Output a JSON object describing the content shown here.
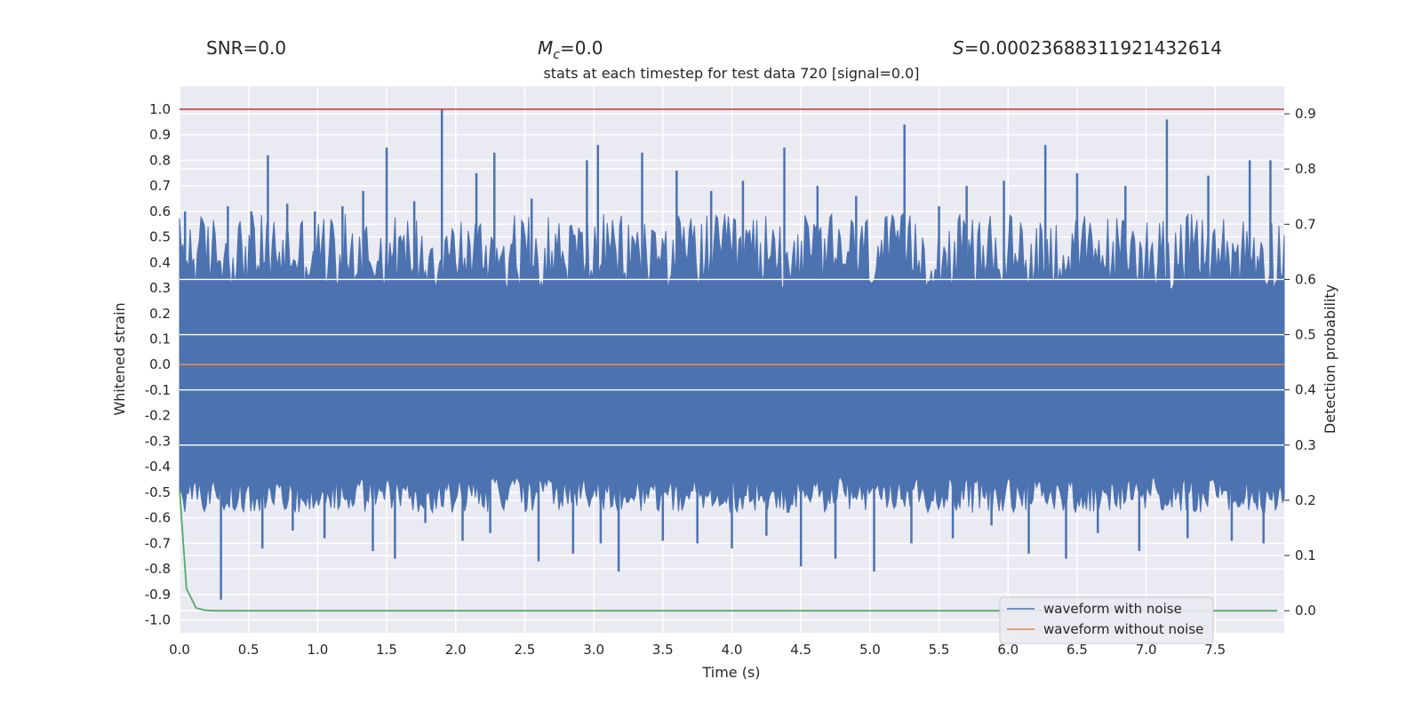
{
  "header": {
    "snr": "SNR=0.0",
    "mc_symbol": "M",
    "mc_sub": "c",
    "mc_value": "=0.0",
    "s_symbol": "S",
    "s_value": "=0.00023688311921432614"
  },
  "chart_data": {
    "type": "line",
    "title": "stats at each timestep for test data 720 [signal=0.0]",
    "xlabel": "Time (s)",
    "ylabel": "Whitened strain",
    "y2label": "Detection probability",
    "xlim": [
      0.0,
      8.0
    ],
    "ylim": [
      -1.05,
      1.09
    ],
    "y2lim": [
      -0.04,
      0.95
    ],
    "x_ticks": [
      "0.0",
      "0.5",
      "1.0",
      "1.5",
      "2.0",
      "2.5",
      "3.0",
      "3.5",
      "4.0",
      "4.5",
      "5.0",
      "5.5",
      "6.0",
      "6.5",
      "7.0",
      "7.5"
    ],
    "y_ticks": [
      "-1.0",
      "-0.9",
      "-0.8",
      "-0.7",
      "-0.6",
      "-0.5",
      "-0.4",
      "-0.3",
      "-0.2",
      "-0.1",
      "0.0",
      "0.1",
      "0.2",
      "0.3",
      "0.4",
      "0.5",
      "0.6",
      "0.7",
      "0.8",
      "0.9",
      "1.0"
    ],
    "y2_ticks": [
      "0.0",
      "0.1",
      "0.2",
      "0.3",
      "0.4",
      "0.5",
      "0.6",
      "0.7",
      "0.8",
      "0.9"
    ],
    "grid": true,
    "legend_position": "lower-right",
    "series": [
      {
        "name": "waveform with noise",
        "color": "#4c72b0",
        "axis": "left",
        "band_upper": 0.23,
        "band_lower": -0.4,
        "peaks_up": [
          [
            0.04,
            0.6
          ],
          [
            0.35,
            0.62
          ],
          [
            0.52,
            0.6
          ],
          [
            0.64,
            0.82
          ],
          [
            0.78,
            0.63
          ],
          [
            0.98,
            0.6
          ],
          [
            1.18,
            0.62
          ],
          [
            1.33,
            0.68
          ],
          [
            1.5,
            0.85
          ],
          [
            1.7,
            0.64
          ],
          [
            1.9,
            1.0
          ],
          [
            2.15,
            0.75
          ],
          [
            2.28,
            0.83
          ],
          [
            2.55,
            0.65
          ],
          [
            2.95,
            0.8
          ],
          [
            3.03,
            0.86
          ],
          [
            3.35,
            0.83
          ],
          [
            3.6,
            0.76
          ],
          [
            3.85,
            0.68
          ],
          [
            4.08,
            0.72
          ],
          [
            4.38,
            0.85
          ],
          [
            4.62,
            0.7
          ],
          [
            4.9,
            0.66
          ],
          [
            5.25,
            0.94
          ],
          [
            5.5,
            0.62
          ],
          [
            5.7,
            0.7
          ],
          [
            5.97,
            0.72
          ],
          [
            6.27,
            0.86
          ],
          [
            6.5,
            0.75
          ],
          [
            6.85,
            0.7
          ],
          [
            7.15,
            0.96
          ],
          [
            7.45,
            0.74
          ],
          [
            7.75,
            0.8
          ],
          [
            7.9,
            0.8
          ]
        ],
        "peaks_down": [
          [
            0.18,
            -0.55
          ],
          [
            0.3,
            -0.92
          ],
          [
            0.6,
            -0.72
          ],
          [
            0.82,
            -0.65
          ],
          [
            1.05,
            -0.68
          ],
          [
            1.4,
            -0.73
          ],
          [
            1.56,
            -0.76
          ],
          [
            1.78,
            -0.62
          ],
          [
            2.05,
            -0.69
          ],
          [
            2.25,
            -0.66
          ],
          [
            2.6,
            -0.77
          ],
          [
            2.85,
            -0.74
          ],
          [
            3.05,
            -0.7
          ],
          [
            3.18,
            -0.81
          ],
          [
            3.5,
            -0.69
          ],
          [
            3.75,
            -0.7
          ],
          [
            4.0,
            -0.72
          ],
          [
            4.25,
            -0.67
          ],
          [
            4.5,
            -0.79
          ],
          [
            4.75,
            -0.76
          ],
          [
            5.03,
            -0.81
          ],
          [
            5.3,
            -0.7
          ],
          [
            5.6,
            -0.68
          ],
          [
            5.88,
            -0.63
          ],
          [
            6.15,
            -0.74
          ],
          [
            6.42,
            -0.76
          ],
          [
            6.65,
            -0.66
          ],
          [
            6.95,
            -0.73
          ],
          [
            7.3,
            -0.68
          ],
          [
            7.62,
            -0.69
          ],
          [
            7.85,
            -0.7
          ]
        ]
      },
      {
        "name": "waveform without noise",
        "color": "#dd8452",
        "axis": "left",
        "x": [
          0.0,
          8.0
        ],
        "y": [
          0.0,
          0.0
        ]
      },
      {
        "color": "#55a868",
        "axis": "right",
        "x": [
          0.0,
          0.05,
          0.12,
          0.18,
          0.25,
          0.35,
          1.0,
          2.0,
          4.0,
          6.0,
          7.95
        ],
        "y": [
          0.22,
          0.04,
          0.005,
          0.001,
          0.0,
          0.0,
          0.0,
          0.0,
          0.0,
          0.0,
          0.0
        ]
      },
      {
        "color": "#c44e52",
        "axis": "left",
        "x": [
          0.0,
          8.0
        ],
        "y": [
          1.0,
          1.0
        ]
      }
    ]
  }
}
